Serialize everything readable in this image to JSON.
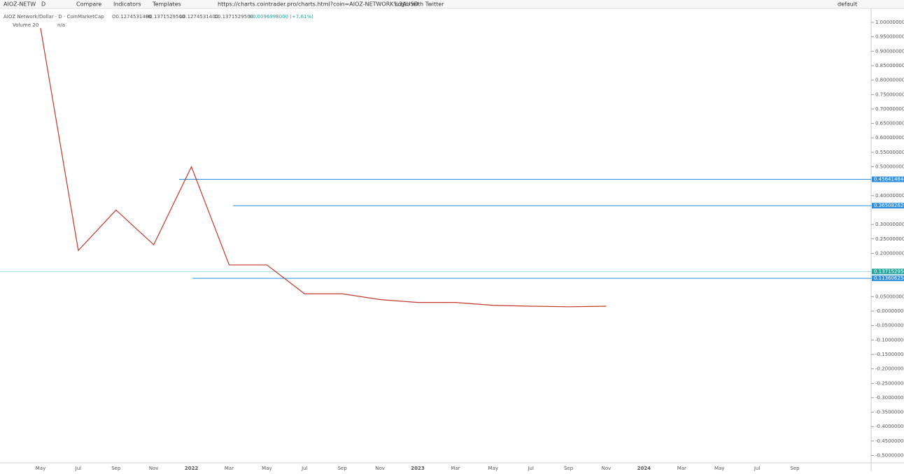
{
  "toolbar": {
    "symbol": "AIOZ-NETW",
    "interval": "D",
    "compare": "Compare",
    "indicators": "Indicators",
    "templates": "Templates",
    "url": "https://charts.cointrader.pro/charts.html?coin=AIOZ-NETWORK%3AUSD",
    "login": "Login with Twitter",
    "layout": "default"
  },
  "legend": {
    "name": "AIOZ Network/Dollar · D · CoinMarketCap",
    "open": "O0.1274531400",
    "high": "H0.1371529500",
    "low": "L0.1274531400",
    "close": "C0.1371529500",
    "change": "+0.0096998000 (+7.61%)",
    "volume": "Volume 20",
    "volume_value": "n/a"
  },
  "chart_data": {
    "type": "line",
    "categories": [
      "May",
      "Jul",
      "Sep",
      "Nov",
      "2022",
      "Mar",
      "May",
      "Jul",
      "Sep",
      "Nov",
      "2023",
      "Mar",
      "May",
      "Jul",
      "Sep",
      "Nov",
      "2024",
      "Mar",
      "May",
      "Jul",
      "Sep"
    ],
    "series": [
      {
        "name": "AIOZ Network/Dollar",
        "color": "#c0392b",
        "values": [
          0.98,
          0.21,
          0.35,
          0.23,
          0.5,
          0.16,
          0.16,
          0.06,
          0.06,
          0.04,
          0.03,
          0.03,
          0.02,
          0.017,
          0.015,
          0.017,
          null,
          null,
          null,
          null,
          null
        ]
      }
    ],
    "ylim": [
      -0.52,
      1.02
    ],
    "yticks": [
      {
        "value": 1.0,
        "label": "1.0000000000"
      },
      {
        "value": 0.95,
        "label": "0.9500000000"
      },
      {
        "value": 0.9,
        "label": "0.9000000000"
      },
      {
        "value": 0.85,
        "label": "0.8500000000"
      },
      {
        "value": 0.8,
        "label": "0.8000000000"
      },
      {
        "value": 0.75,
        "label": "0.7500000000"
      },
      {
        "value": 0.7,
        "label": "0.7000000000"
      },
      {
        "value": 0.65,
        "label": "0.6500000000"
      },
      {
        "value": 0.6,
        "label": "0.6000000000"
      },
      {
        "value": 0.55,
        "label": "0.5500000000"
      },
      {
        "value": 0.5,
        "label": "0.5000000000"
      },
      {
        "value": 0.4,
        "label": "0.4000000000"
      },
      {
        "value": 0.3,
        "label": "0.3000000000"
      },
      {
        "value": 0.25,
        "label": "0.2500000000"
      },
      {
        "value": 0.2,
        "label": "0.2000000000"
      },
      {
        "value": 0.05,
        "label": "0.0500000000"
      },
      {
        "value": 0,
        "label": "-0.0000000000"
      },
      {
        "value": -0.05,
        "label": "-0.0500000000"
      },
      {
        "value": -0.1,
        "label": "-0.1000000000"
      },
      {
        "value": -0.15,
        "label": "-0.1500000000"
      },
      {
        "value": -0.2,
        "label": "-0.2000000000"
      },
      {
        "value": -0.25,
        "label": "-0.2500000000"
      },
      {
        "value": -0.3,
        "label": "-0.3000000000"
      },
      {
        "value": -0.35,
        "label": "-0.3500000000"
      },
      {
        "value": -0.4,
        "label": "-0.4000000000"
      },
      {
        "value": -0.45,
        "label": "-0.4500000000"
      },
      {
        "value": -0.5,
        "label": "-0.5000000000"
      }
    ],
    "levels": [
      {
        "value": 0.45641484,
        "label": "0.4564148400",
        "color": "#2f8fde"
      },
      {
        "value": 0.36508262,
        "label": "0.3650826200",
        "color": "#2f8fde"
      },
      {
        "value": 0.13715295,
        "label": "0.1371529500",
        "color": "#26a69a"
      },
      {
        "value": 0.11360625,
        "label": "0.1136062500",
        "color": "#2f8fde"
      }
    ]
  }
}
